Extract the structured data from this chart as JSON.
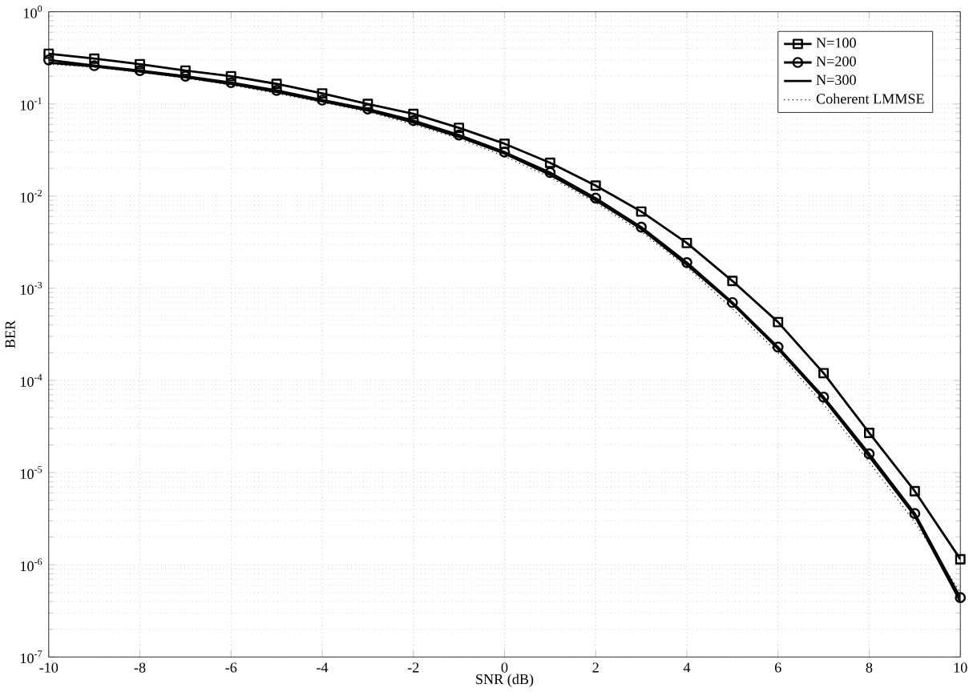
{
  "chart_data": {
    "type": "line",
    "xlabel": "SNR (dB)",
    "ylabel": "BER",
    "log": "y",
    "grid": true,
    "legend": "top right",
    "x": [
      -10,
      -9,
      -8,
      -7,
      -6,
      -5,
      -4,
      -3,
      -2,
      -1,
      0,
      1,
      2,
      3,
      4,
      5,
      6,
      7,
      8,
      9,
      10
    ],
    "xlim": [
      -10,
      10
    ],
    "xticks": [
      -10,
      -8,
      -6,
      -4,
      -2,
      0,
      2,
      4,
      6,
      8,
      10
    ],
    "ylim": [
      1e-07,
      1
    ],
    "yticks": [
      {
        "value": 1e-07,
        "label": "10$^{-7}$"
      },
      {
        "value": 1e-06,
        "label": "10$^{-6}$"
      },
      {
        "value": 1e-05,
        "label": "10$^{-5}$"
      },
      {
        "value": 0.0001,
        "label": "10$^{-4}$"
      },
      {
        "value": 0.001,
        "label": "10$^{-3}$"
      },
      {
        "value": 0.01,
        "label": "10$^{-2}$"
      },
      {
        "value": 0.1,
        "label": "10$^{-1}$"
      },
      {
        "value": 1,
        "label": "10$^{0}$"
      }
    ],
    "series": [
      {
        "name": "N=100",
        "color": "#000000",
        "marker": "square",
        "line_style": "solid",
        "values": [
          0.35,
          0.31,
          0.27,
          0.23,
          0.2,
          0.165,
          0.13,
          0.1,
          0.078,
          0.055,
          0.037,
          0.023,
          0.013,
          0.0068,
          0.0031,
          0.0012,
          0.00043,
          0.00012,
          2.7e-05,
          6.3e-06,
          1.15e-06
        ]
      },
      {
        "name": "N=200",
        "color": "#000000",
        "marker": "circle",
        "line_style": "solid",
        "values": [
          0.3,
          0.26,
          0.23,
          0.2,
          0.17,
          0.14,
          0.11,
          0.088,
          0.066,
          0.046,
          0.03,
          0.018,
          0.0095,
          0.0046,
          0.0019,
          0.0007,
          0.00023,
          6.6e-05,
          1.6e-05,
          3.6e-06,
          4.4e-07
        ]
      },
      {
        "name": "N=300",
        "color": "#000000",
        "marker": "none",
        "line_style": "solid",
        "values": [
          0.28,
          0.255,
          0.225,
          0.195,
          0.165,
          0.135,
          0.107,
          0.085,
          0.063,
          0.044,
          0.029,
          0.017,
          0.009,
          0.0044,
          0.0018,
          0.00068,
          0.00022,
          6.3e-05,
          1.5e-05,
          3.4e-06,
          4e-07
        ]
      },
      {
        "name": "Coherent LMMSE",
        "color": "#000000",
        "marker": "none",
        "line_style": "dotted",
        "values": [
          0.27,
          0.25,
          0.22,
          0.19,
          0.16,
          0.13,
          0.104,
          0.082,
          0.06,
          0.042,
          0.027,
          0.016,
          0.0085,
          0.0041,
          0.0017,
          0.0006,
          0.0002,
          5.5e-05,
          1.3e-05,
          2.9e-06,
          5e-07
        ]
      }
    ]
  }
}
